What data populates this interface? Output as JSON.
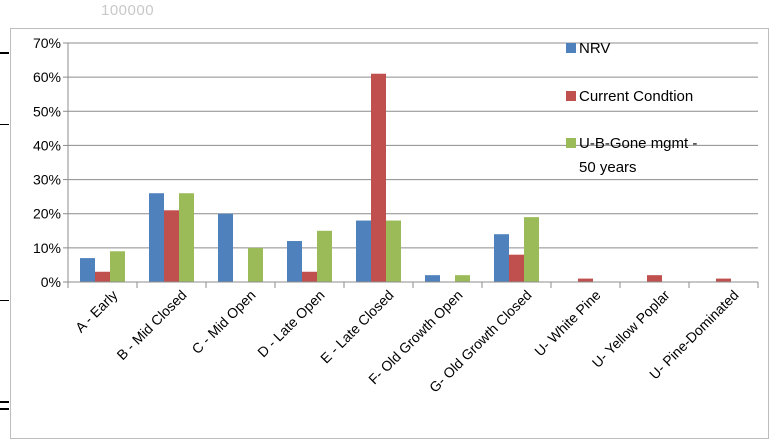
{
  "top_label": "100000",
  "chart_data": {
    "type": "bar",
    "categories": [
      "A - Early",
      "B - Mid Closed",
      "C - Mid Open",
      "D - Late Open",
      "E - Late Closed",
      "F- Old Growth Open",
      "G- Old Growth Closed",
      "U- White Pine",
      "U- Yellow Poplar",
      "U- Pine-Dominated"
    ],
    "series": [
      {
        "name": "NRV",
        "color": "#4f81bd",
        "values": [
          7,
          26,
          20,
          12,
          18,
          2,
          14,
          0,
          0,
          0
        ]
      },
      {
        "name": "Current Condtion",
        "color": "#c0504d",
        "values": [
          3,
          21,
          0,
          3,
          61,
          0,
          8,
          1,
          2,
          1
        ]
      },
      {
        "name": "U-B-Gone mgmt - 50 years",
        "color": "#9bbb59",
        "values": [
          9,
          26,
          10,
          15,
          18,
          2,
          19,
          0,
          0,
          0
        ]
      }
    ],
    "y_ticks": [
      "0%",
      "10%",
      "20%",
      "30%",
      "40%",
      "50%",
      "60%",
      "70%"
    ],
    "ylim": [
      0,
      70
    ],
    "grid": true,
    "legend_position": "right",
    "xlabel": "",
    "ylabel": ""
  }
}
